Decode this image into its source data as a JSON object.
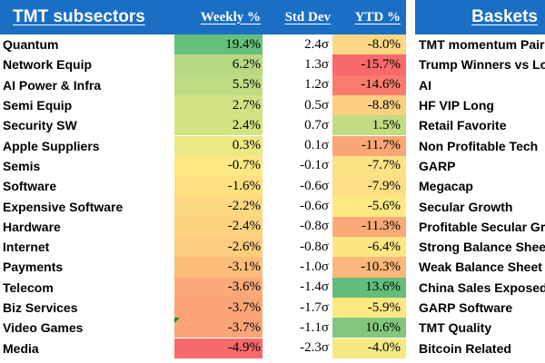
{
  "headers": {
    "subsectors": "TMT subsectors",
    "weekly": "Weekly %",
    "std_dev": "Std Dev",
    "ytd": "YTD %",
    "baskets": "Baskets"
  },
  "colors": {
    "header_bg": "#1a6fc4",
    "header_text": "#ffffff"
  },
  "rows": [
    {
      "name": "Quantum",
      "weekly": "19.4%",
      "std": "2.4σ",
      "ytd": "-8.0%",
      "basket": "TMT momentum Pair",
      "weekly_bg": "#66bf7a",
      "ytd_bg": "#fcd784"
    },
    {
      "name": "Network Equip",
      "weekly": "6.2%",
      "std": "1.3σ",
      "ytd": "-15.7%",
      "basket": "Trump Winners vs Losers",
      "weekly_bg": "#b8d983",
      "ytd_bg": "#f8696b"
    },
    {
      "name": "AI Power & Infra",
      "weekly": "5.5%",
      "std": "1.2σ",
      "ytd": "-14.6%",
      "basket": "AI",
      "weekly_bg": "#bedc83",
      "ytd_bg": "#f97c6e"
    },
    {
      "name": "Semi Equip",
      "weekly": "2.7%",
      "std": "0.5σ",
      "ytd": "-8.8%",
      "basket": "HF VIP Long",
      "weekly_bg": "#d2e283",
      "ytd_bg": "#fccf81"
    },
    {
      "name": "Security SW",
      "weekly": "2.4%",
      "std": "0.7σ",
      "ytd": "1.5%",
      "basket": "Retail Favorite",
      "weekly_bg": "#d6e382",
      "ytd_bg": "#c1dc82"
    },
    {
      "name": "Apple Suppliers",
      "weekly": "0.3%",
      "std": "0.1σ",
      "ytd": "-11.7%",
      "basket": "Non Profitable Tech",
      "weekly_bg": "#ece884",
      "ytd_bg": "#faa676"
    },
    {
      "name": "Semis",
      "weekly": "-0.7%",
      "std": "-0.1σ",
      "ytd": "-7.7%",
      "basket": "GARP",
      "weekly_bg": "#fee883",
      "ytd_bg": "#fde284"
    },
    {
      "name": "Software",
      "weekly": "-1.6%",
      "std": "-0.6σ",
      "ytd": "-7.9%",
      "basket": "Megacap",
      "weekly_bg": "#fee081",
      "ytd_bg": "#fde084"
    },
    {
      "name": "Expensive Software",
      "weekly": "-2.2%",
      "std": "-0.6σ",
      "ytd": "-5.6%",
      "basket": "Secular Growth",
      "weekly_bg": "#fed880",
      "ytd_bg": "#fee883"
    },
    {
      "name": "Hardware",
      "weekly": "-2.4%",
      "std": "-0.8σ",
      "ytd": "-11.3%",
      "basket": "Profitable Secular Growth",
      "weekly_bg": "#fdd37f",
      "ytd_bg": "#fbaa77"
    },
    {
      "name": "Internet",
      "weekly": "-2.6%",
      "std": "-0.8σ",
      "ytd": "-6.4%",
      "basket": "Strong Balance Sheet",
      "weekly_bg": "#fdcd7e",
      "ytd_bg": "#fee683"
    },
    {
      "name": "Payments",
      "weekly": "-3.1%",
      "std": "-1.0σ",
      "ytd": "-10.3%",
      "basket": "Weak Balance Sheet",
      "weekly_bg": "#fcbd7b",
      "ytd_bg": "#fbb87a"
    },
    {
      "name": "Telecom",
      "weekly": "-3.6%",
      "std": "-1.4σ",
      "ytd": "13.6%",
      "basket": "China Sales Exposed",
      "weekly_bg": "#fba978",
      "ytd_bg": "#63be7b"
    },
    {
      "name": "Biz Services",
      "weekly": "-3.7%",
      "std": "-1.7σ",
      "ytd": "-5.9%",
      "basket": "GARP Software",
      "weekly_bg": "#fba577",
      "ytd_bg": "#fee883"
    },
    {
      "name": "Video Games",
      "weekly": "-3.7%",
      "std": "-1.1σ",
      "ytd": "10.6%",
      "basket": "TMT Quality",
      "weekly_bg": "#fba577",
      "ytd_bg": "#82c77d"
    },
    {
      "name": "Media",
      "weekly": "-4.9%",
      "std": "-2.3σ",
      "ytd": "-4.0%",
      "basket": "Bitcoin Related",
      "weekly_bg": "#f8696b",
      "ytd_bg": "#f6e984"
    }
  ]
}
